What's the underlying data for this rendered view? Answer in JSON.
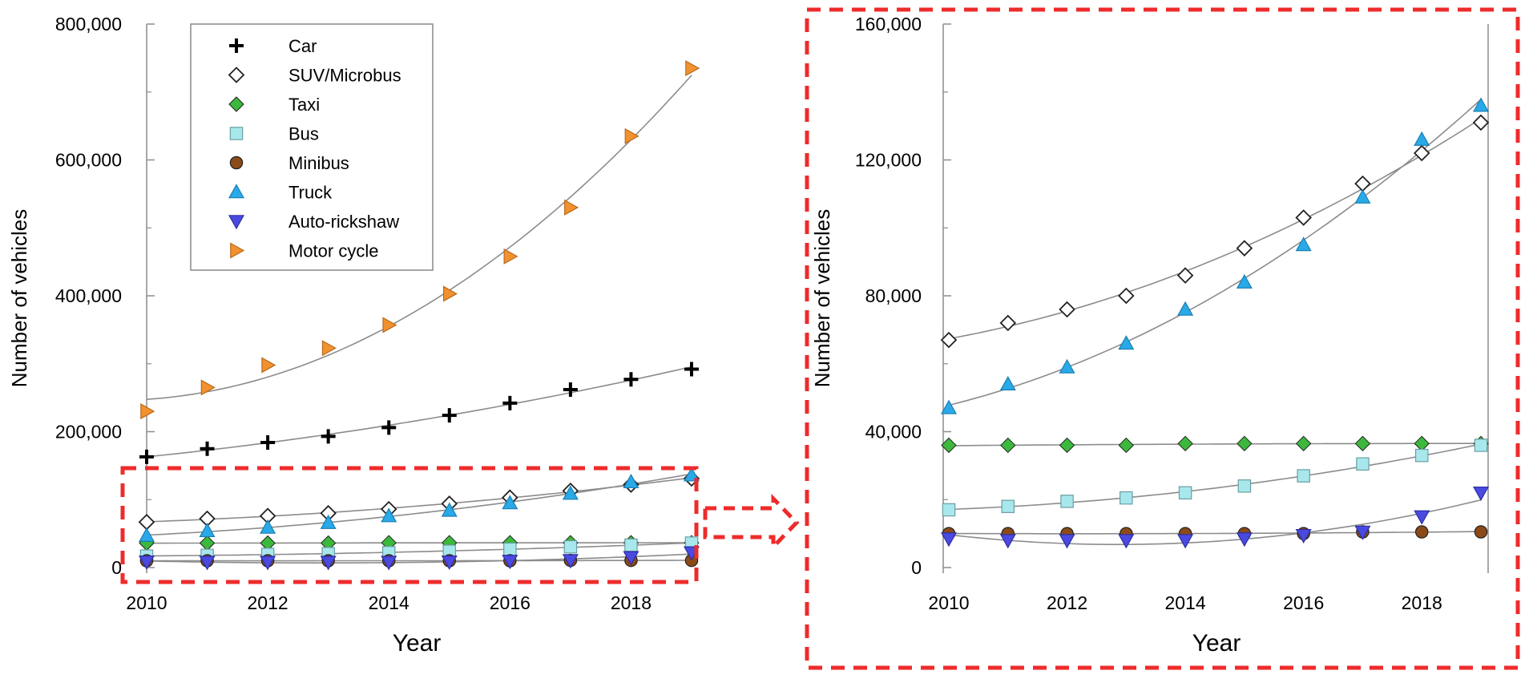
{
  "figure": {
    "zoom_box_color": "#ee2b2b",
    "fit_line_color": "#8c8c8c"
  },
  "series_styles": [
    {
      "name": "Car",
      "marker": "plus-icon",
      "fill": "#000000"
    },
    {
      "name": "SUV/Microbus",
      "marker": "open-diamond-icon",
      "fill": "#ffffff"
    },
    {
      "name": "Taxi",
      "marker": "filled-diamond-icon",
      "fill": "#3cb83c"
    },
    {
      "name": "Bus",
      "marker": "square-icon",
      "fill": "#a8e8ec"
    },
    {
      "name": "Minibus",
      "marker": "circle-icon",
      "fill": "#8b4a17"
    },
    {
      "name": "Truck",
      "marker": "triangle-up-icon",
      "fill": "#29a9e8"
    },
    {
      "name": "Auto-rickshaw",
      "marker": "triangle-down-icon",
      "fill": "#4a4ae0"
    },
    {
      "name": "Motor cycle",
      "marker": "triangle-right-icon",
      "fill": "#f2912f"
    }
  ],
  "chart_data": [
    {
      "type": "scatter",
      "title": "",
      "xlabel": "Year",
      "ylabel": "Number of vehicles",
      "xlim": [
        2010,
        2019
      ],
      "ylim": [
        0,
        800000
      ],
      "xticks": [
        "2010",
        "2012",
        "2014",
        "2016",
        "2018"
      ],
      "yticks": [
        "0",
        "200,000",
        "400,000",
        "600,000",
        "800,000"
      ],
      "legend_position": "top-left",
      "grid": false,
      "trendlines": true,
      "x": [
        2010,
        2011,
        2012,
        2013,
        2014,
        2015,
        2016,
        2017,
        2018,
        2019
      ],
      "series": [
        {
          "name": "Car",
          "values": [
            163000,
            175000,
            184000,
            193000,
            206000,
            224000,
            242000,
            262000,
            277000,
            292000
          ]
        },
        {
          "name": "SUV/Microbus",
          "values": [
            67000,
            72000,
            76000,
            80000,
            86000,
            94000,
            103000,
            113000,
            122000,
            131000
          ]
        },
        {
          "name": "Taxi",
          "values": [
            36000,
            36000,
            36000,
            36000,
            36500,
            36500,
            36500,
            36500,
            36500,
            36500
          ]
        },
        {
          "name": "Bus",
          "values": [
            17000,
            18000,
            19500,
            20500,
            22000,
            24000,
            27000,
            30500,
            33000,
            36000
          ]
        },
        {
          "name": "Minibus",
          "values": [
            10000,
            10000,
            10000,
            10000,
            10000,
            10000,
            10000,
            10500,
            10500,
            10500
          ]
        },
        {
          "name": "Truck",
          "values": [
            47000,
            54000,
            59000,
            66000,
            76000,
            84000,
            95000,
            109000,
            126000,
            136000
          ]
        },
        {
          "name": "Auto-rickshaw",
          "values": [
            8500,
            8000,
            8000,
            8000,
            8000,
            8500,
            9500,
            10500,
            15000,
            22000
          ]
        },
        {
          "name": "Motor cycle",
          "values": [
            230000,
            265000,
            298000,
            323000,
            357000,
            403000,
            458000,
            530000,
            635000,
            735000
          ]
        }
      ]
    },
    {
      "type": "scatter",
      "title": "",
      "xlabel": "Year",
      "ylabel": "Number of vehicles",
      "xlim": [
        2010,
        2019
      ],
      "ylim": [
        0,
        160000
      ],
      "xticks": [
        "2010",
        "2012",
        "2014",
        "2016",
        "2018"
      ],
      "yticks": [
        "0",
        "40,000",
        "80,000",
        "120,000",
        "160,000"
      ],
      "grid": false,
      "trendlines": true,
      "x": [
        2010,
        2011,
        2012,
        2013,
        2014,
        2015,
        2016,
        2017,
        2018,
        2019
      ],
      "series": [
        {
          "name": "SUV/Microbus",
          "values": [
            67000,
            72000,
            76000,
            80000,
            86000,
            94000,
            103000,
            113000,
            122000,
            131000
          ]
        },
        {
          "name": "Taxi",
          "values": [
            36000,
            36000,
            36000,
            36000,
            36500,
            36500,
            36500,
            36500,
            36500,
            36500
          ]
        },
        {
          "name": "Bus",
          "values": [
            17000,
            18000,
            19500,
            20500,
            22000,
            24000,
            27000,
            30500,
            33000,
            36000
          ]
        },
        {
          "name": "Minibus",
          "values": [
            10000,
            10000,
            10000,
            10000,
            10000,
            10000,
            10000,
            10500,
            10500,
            10500
          ]
        },
        {
          "name": "Truck",
          "values": [
            47000,
            54000,
            59000,
            66000,
            76000,
            84000,
            95000,
            109000,
            126000,
            136000
          ]
        },
        {
          "name": "Auto-rickshaw",
          "values": [
            8500,
            8000,
            8000,
            8000,
            8000,
            8500,
            9500,
            10500,
            15000,
            22000
          ]
        }
      ]
    }
  ]
}
